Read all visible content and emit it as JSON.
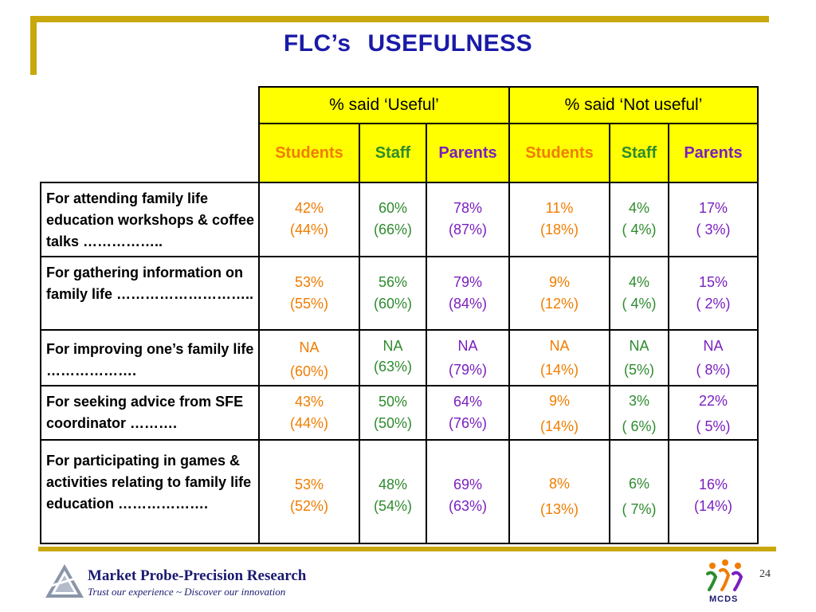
{
  "slide": {
    "title_part1": "FLC’s",
    "title_part2": "USEFULNESS",
    "page_number": "24"
  },
  "table": {
    "group_headers": [
      "%  said ‘Useful’",
      "%  said ‘Not useful’"
    ],
    "sub_headers": [
      "Students",
      "Staff",
      "Parents",
      "Students",
      "Staff",
      "Parents"
    ],
    "rows": [
      {
        "label": "For attending family life education workshops & coffee talks ……………..",
        "values": [
          [
            "42%",
            "(44%)"
          ],
          [
            "60%",
            "(66%)"
          ],
          [
            "78%",
            "(87%)"
          ],
          [
            "11%",
            "(18%)"
          ],
          [
            "4%",
            "( 4%)"
          ],
          [
            "17%",
            "( 3%)"
          ]
        ]
      },
      {
        "label": "For gathering information on family life ………………………..",
        "values": [
          [
            "53%",
            "(55%)"
          ],
          [
            "56%",
            "(60%)"
          ],
          [
            "79%",
            "(84%)"
          ],
          [
            "9%",
            "(12%)"
          ],
          [
            "4%",
            "( 4%)"
          ],
          [
            "15%",
            "( 2%)"
          ]
        ]
      },
      {
        "label": "For improving one’s family life ……………….",
        "values": [
          [
            "NA",
            "(60%)"
          ],
          [
            "NA",
            "(63%)"
          ],
          [
            "NA",
            "(79%)"
          ],
          [
            "NA",
            "(14%)"
          ],
          [
            "NA",
            "(5%)"
          ],
          [
            "NA",
            "(  8%)"
          ]
        ]
      },
      {
        "label": "For seeking advice from SFE coordinator ……….",
        "values": [
          [
            "43%",
            "(44%)"
          ],
          [
            "50%",
            "(50%)"
          ],
          [
            "64%",
            "(76%)"
          ],
          [
            "9%",
            "(14%)"
          ],
          [
            "3%",
            "( 6%)"
          ],
          [
            "22%",
            "( 5%)"
          ]
        ]
      },
      {
        "label": "For participating in games & activities relating to family life education ……………….",
        "values": [
          [
            "53%",
            "(52%)"
          ],
          [
            "48%",
            "(54%)"
          ],
          [
            "69%",
            "(63%)"
          ],
          [
            "8%",
            "(13%)"
          ],
          [
            "6%",
            "( 7%)"
          ],
          [
            "16%",
            "(14%)"
          ]
        ]
      }
    ]
  },
  "footer": {
    "company": "Market Probe-Precision Research",
    "tagline": "Trust our experience ~ Discover our innovation",
    "partner_logo_text": "MCDS"
  },
  "colors": {
    "students": "#f07d00",
    "staff": "#2e8b2e",
    "parents": "#7a1fbf",
    "header_bg": "#ffff00",
    "accent_bar": "#c9a80e",
    "title": "#1a1aa8"
  }
}
